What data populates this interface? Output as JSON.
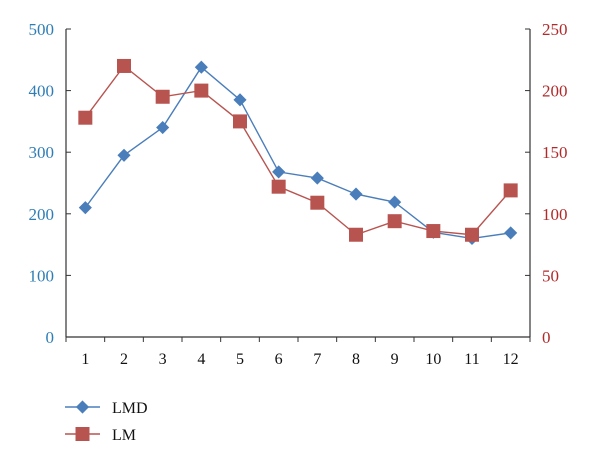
{
  "chart_data": {
    "type": "line",
    "categories": [
      "1",
      "2",
      "3",
      "4",
      "5",
      "6",
      "7",
      "8",
      "9",
      "10",
      "11",
      "12"
    ],
    "y_left": {
      "range": [
        0,
        500
      ],
      "ticks": [
        0,
        100,
        200,
        300,
        400,
        500
      ],
      "color": "#2e7db5"
    },
    "y_right": {
      "range": [
        0,
        250
      ],
      "ticks": [
        0,
        50,
        100,
        150,
        200,
        250
      ],
      "color": "#b02a2a"
    },
    "series": [
      {
        "name": "LMD",
        "axis": "left",
        "color": "#4a7ebb",
        "marker": "diamond",
        "values": [
          210,
          295,
          340,
          438,
          385,
          268,
          258,
          232,
          219,
          170,
          160,
          169
        ]
      },
      {
        "name": "LM",
        "axis": "right",
        "color": "#b85450",
        "marker": "square",
        "values": [
          178,
          220,
          195,
          200,
          175,
          122,
          109,
          83,
          94,
          86,
          83,
          119
        ]
      }
    ],
    "grid": false,
    "legend": "bottom-left"
  }
}
